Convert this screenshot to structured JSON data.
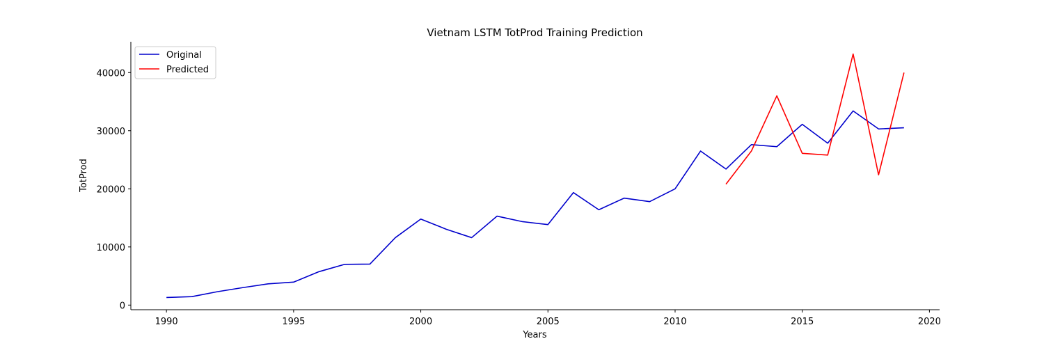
{
  "chart_data": {
    "type": "line",
    "title": "Vietnam LSTM TotProd Training Prediction",
    "xlabel": "Years",
    "ylabel": "TotProd",
    "xlim": [
      1988.6,
      2020.4
    ],
    "ylim": [
      -800,
      45300
    ],
    "x_ticks": [
      1990,
      1995,
      2000,
      2005,
      2010,
      2015,
      2020
    ],
    "y_ticks": [
      0,
      10000,
      20000,
      30000,
      40000
    ],
    "legend_position": "top-left",
    "grid": false,
    "series": [
      {
        "name": "Original",
        "color": "#0000cc",
        "x": [
          1990,
          1991,
          1992,
          1993,
          1994,
          1995,
          1996,
          1997,
          1998,
          1999,
          2000,
          2001,
          2002,
          2003,
          2004,
          2005,
          2006,
          2007,
          2008,
          2009,
          2010,
          2011,
          2012,
          2013,
          2014,
          2015,
          2016,
          2017,
          2018,
          2019
        ],
        "y": [
          1300,
          1450,
          2300,
          3000,
          3650,
          3950,
          5750,
          7000,
          7050,
          11600,
          14800,
          13050,
          11600,
          15300,
          14350,
          13850,
          19350,
          16400,
          18400,
          17800,
          20000,
          26500,
          23400,
          27600,
          27250,
          31100,
          27850,
          33400,
          30300,
          30500
        ]
      },
      {
        "name": "Predicted",
        "color": "#ff0000",
        "x": [
          2012,
          2013,
          2014,
          2015,
          2016,
          2017,
          2018,
          2019
        ],
        "y": [
          20800,
          26500,
          36000,
          26100,
          25800,
          43200,
          22400,
          40000
        ]
      }
    ]
  }
}
